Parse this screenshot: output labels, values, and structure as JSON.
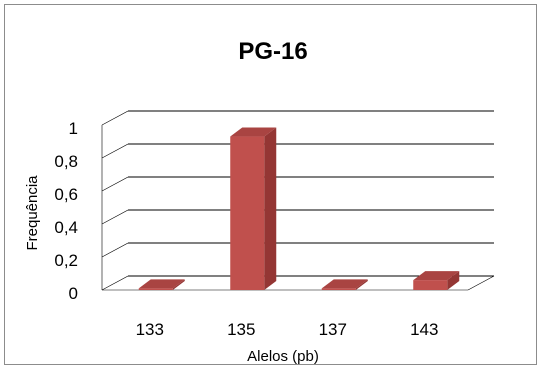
{
  "chart_data": {
    "type": "bar",
    "title": "PG-16",
    "xlabel": "Alelos (pb)",
    "ylabel": "Frequência",
    "categories": [
      "133",
      "135",
      "137",
      "143"
    ],
    "values": [
      0.01,
      0.93,
      0.01,
      0.06
    ],
    "ylim": [
      0,
      1
    ],
    "yticks": [
      "0",
      "0,2",
      "0,4",
      "0,6",
      "0,8",
      "1"
    ],
    "grid": true,
    "legend": "none",
    "three_d": true,
    "colors": {
      "bar_front": "#c0504d",
      "bar_side": "#943634",
      "bar_top": "#a94442",
      "grid": "#000000"
    }
  }
}
